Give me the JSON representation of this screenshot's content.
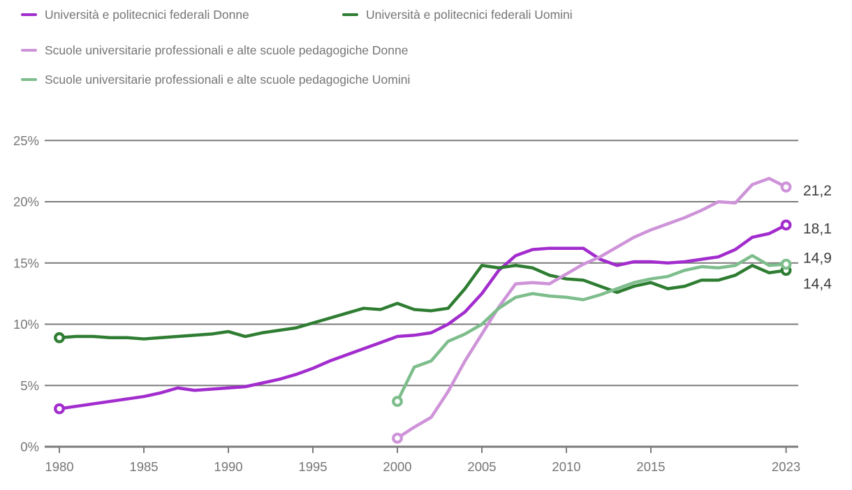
{
  "legend": {
    "items": [
      {
        "label": "Università e politecnici federali Donne",
        "color": "#a22ccd"
      },
      {
        "label": "Università e politecnici federali Uomini",
        "color": "#2e7d32"
      },
      {
        "label": "Scuole universitarie professionali e alte scuole pedagogiche Donne",
        "color": "#ce93d8"
      },
      {
        "label": "Scuole universitarie professionali e alte scuole pedagogiche Uomini",
        "color": "#7ebd8c"
      }
    ]
  },
  "colors": {
    "background": "#ffffff",
    "grid": "#7b7b7b",
    "axis": "#757575",
    "tick_text": "#767676",
    "value_text": "#3d3d3d"
  },
  "chart_data": {
    "type": "line",
    "title": "",
    "xlabel": "",
    "ylabel": "",
    "grid": true,
    "legend_position": "top-left",
    "xlim": [
      1980,
      2023
    ],
    "ylim": [
      0,
      25
    ],
    "x_ticks": [
      1980,
      1985,
      1990,
      1995,
      2000,
      2005,
      2010,
      2015,
      2023
    ],
    "y_ticks": [
      {
        "value": 0,
        "label": "0%"
      },
      {
        "value": 5,
        "label": "5%"
      },
      {
        "value": 10,
        "label": "10%"
      },
      {
        "value": 15,
        "label": "15%"
      },
      {
        "value": 20,
        "label": "20%"
      },
      {
        "value": 25,
        "label": "25%"
      }
    ],
    "series": [
      {
        "key": "universita-politecnici-federali-donne",
        "name": "Università e politecnici federali Donne",
        "color": "#a22ccd",
        "start_year": 1980,
        "end_label": "18,1",
        "values": [
          3.1,
          3.3,
          3.5,
          3.7,
          3.9,
          4.1,
          4.4,
          4.8,
          4.6,
          4.7,
          4.8,
          4.9,
          5.2,
          5.5,
          5.9,
          6.4,
          7.0,
          7.5,
          8.0,
          8.5,
          9.0,
          9.1,
          9.3,
          10.0,
          11.0,
          12.5,
          14.4,
          15.6,
          16.1,
          16.2,
          16.2,
          16.2,
          15.3,
          14.8,
          15.1,
          15.1,
          15.0,
          15.1,
          15.3,
          15.5,
          16.1,
          17.1,
          17.4,
          18.1
        ]
      },
      {
        "key": "universita-politecnici-federali-uomini",
        "name": "Università e politecnici federali Uomini",
        "color": "#2e7d32",
        "start_year": 1980,
        "end_label": "14,4",
        "values": [
          8.9,
          9.0,
          9.0,
          8.9,
          8.9,
          8.8,
          8.9,
          9.0,
          9.1,
          9.2,
          9.4,
          9.0,
          9.3,
          9.5,
          9.7,
          10.1,
          10.5,
          10.9,
          11.3,
          11.2,
          11.7,
          11.2,
          11.1,
          11.3,
          12.9,
          14.8,
          14.6,
          14.8,
          14.6,
          14.0,
          13.7,
          13.6,
          13.1,
          12.6,
          13.1,
          13.4,
          12.9,
          13.1,
          13.6,
          13.6,
          14.0,
          14.8,
          14.2,
          14.4
        ]
      },
      {
        "key": "scuole-universitarie-professionali-donne",
        "name": "Scuole universitarie professionali e alte scuole pedagogiche Donne",
        "color": "#ce93d8",
        "start_year": 2000,
        "end_label": "21,2",
        "values": [
          0.7,
          1.6,
          2.4,
          4.5,
          7.0,
          9.2,
          11.4,
          13.3,
          13.4,
          13.3,
          14.1,
          14.9,
          15.5,
          16.3,
          17.1,
          17.7,
          18.2,
          18.7,
          19.3,
          20.0,
          19.9,
          21.4,
          21.9,
          21.2
        ]
      },
      {
        "key": "scuole-universitarie-professionali-uomini",
        "name": "Scuole universitarie professionali e alte scuole pedagogiche Uomini",
        "color": "#7ebd8c",
        "start_year": 2000,
        "end_label": "14,9",
        "values": [
          3.7,
          6.5,
          7.0,
          8.6,
          9.2,
          10.0,
          11.3,
          12.2,
          12.5,
          12.3,
          12.2,
          12.0,
          12.4,
          12.9,
          13.4,
          13.7,
          13.9,
          14.4,
          14.7,
          14.6,
          14.8,
          15.6,
          14.8,
          14.9
        ]
      }
    ]
  }
}
